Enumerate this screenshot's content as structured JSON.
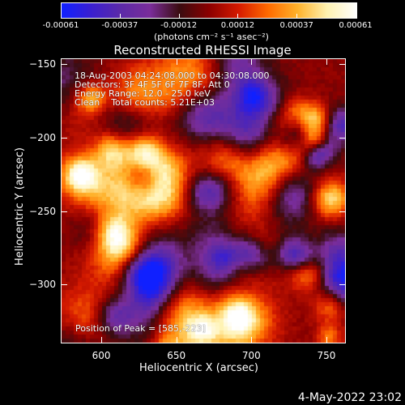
{
  "colorbar": {
    "tick_labels": [
      "-0.00061",
      "-0.00037",
      "-0.00012",
      "0.00012",
      "0.00037",
      "0.00061"
    ],
    "units": "(photons cm⁻² s⁻¹ asec⁻²)",
    "gradient": [
      "#1020ff",
      "#3a1fd0",
      "#5b2aa8",
      "#7a2d9a",
      "#3a0c10",
      "#8b0000",
      "#d51a00",
      "#ff6a00",
      "#ffb12a",
      "#fff2b0",
      "#ffffff"
    ]
  },
  "plot": {
    "title": "Reconstructed RHESSI Image",
    "xlabel": "Heliocentric X (arcsec)",
    "ylabel": "Heliocentric Y (arcsec)",
    "x_ticks": [
      "600",
      "650",
      "700",
      "750"
    ],
    "y_ticks": [
      "−150",
      "−200",
      "−250",
      "−300"
    ],
    "xlim": [
      573,
      763
    ],
    "ylim": [
      -340,
      -146
    ]
  },
  "overlay_lines": [
    "18-Aug-2003 04:24:08.000 to 04:30:08.000",
    "Detectors: 3F 4F 5F 6F 7F 8F, Att 0",
    "Energy Range: 12.0 - 25.0 keV",
    "Clean    Total counts: 5.21E+03"
  ],
  "peak_text": "Position of Peak = [585,-223]",
  "timestamp": "4-May-2022 23:02"
}
